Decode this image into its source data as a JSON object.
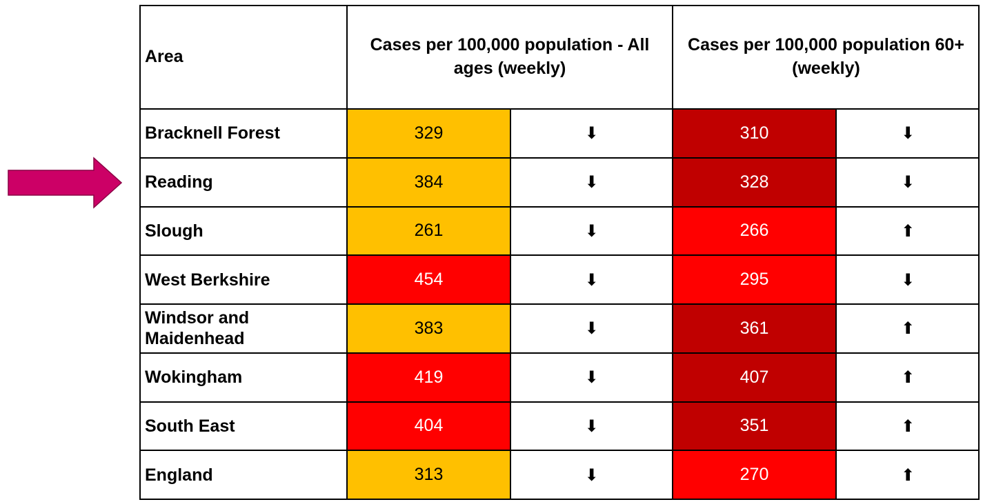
{
  "table": {
    "header": [
      "Area",
      "Cases per 100,000 population - All ages (weekly)",
      "Cases per 100,000 population 60+ (weekly)"
    ],
    "rows": [
      {
        "area": "Bracknell Forest",
        "all_ages": {
          "value": 329,
          "color": "#ffc000",
          "text_color": "#000000",
          "trend": "⬇"
        },
        "over_60": {
          "value": 310,
          "color": "#c00000",
          "text_color": "#ffffff",
          "trend": "⬇"
        }
      },
      {
        "area": "Reading",
        "all_ages": {
          "value": 384,
          "color": "#ffc000",
          "text_color": "#000000",
          "trend": "⬇"
        },
        "over_60": {
          "value": 328,
          "color": "#c00000",
          "text_color": "#ffffff",
          "trend": "⬇"
        }
      },
      {
        "area": "Slough",
        "all_ages": {
          "value": 261,
          "color": "#ffc000",
          "text_color": "#000000",
          "trend": "⬇"
        },
        "over_60": {
          "value": 266,
          "color": "#ff0000",
          "text_color": "#ffffff",
          "trend": "⬆"
        }
      },
      {
        "area": "West Berkshire",
        "all_ages": {
          "value": 454,
          "color": "#ff0000",
          "text_color": "#ffffff",
          "trend": "⬇"
        },
        "over_60": {
          "value": 295,
          "color": "#ff0000",
          "text_color": "#ffffff",
          "trend": "⬇"
        }
      },
      {
        "area": "Windsor and Maidenhead",
        "all_ages": {
          "value": 383,
          "color": "#ffc000",
          "text_color": "#000000",
          "trend": "⬇"
        },
        "over_60": {
          "value": 361,
          "color": "#c00000",
          "text_color": "#ffffff",
          "trend": "⬆"
        }
      },
      {
        "area": "Wokingham",
        "all_ages": {
          "value": 419,
          "color": "#ff0000",
          "text_color": "#ffffff",
          "trend": "⬇"
        },
        "over_60": {
          "value": 407,
          "color": "#c00000",
          "text_color": "#ffffff",
          "trend": "⬆"
        }
      },
      {
        "area": "South East",
        "all_ages": {
          "value": 404,
          "color": "#ff0000",
          "text_color": "#ffffff",
          "trend": "⬇"
        },
        "over_60": {
          "value": 351,
          "color": "#c00000",
          "text_color": "#ffffff",
          "trend": "⬆"
        }
      },
      {
        "area": "England",
        "all_ages": {
          "value": 313,
          "color": "#ffc000",
          "text_color": "#000000",
          "trend": "⬇"
        },
        "over_60": {
          "value": 270,
          "color": "#ff0000",
          "text_color": "#ffffff",
          "trend": "⬆"
        }
      }
    ]
  }
}
